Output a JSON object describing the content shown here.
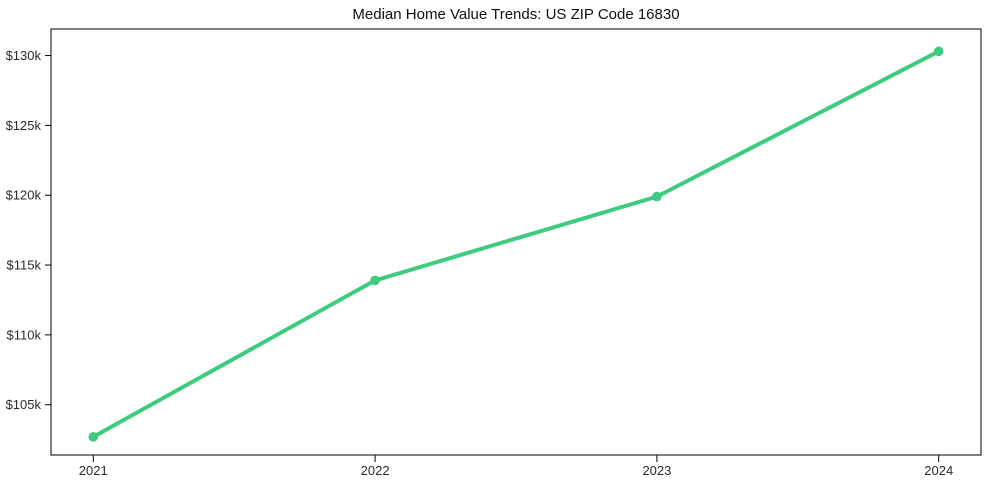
{
  "chart_data": {
    "type": "line",
    "title": "Median Home Value Trends: US ZIP Code 16830",
    "xlabel": "",
    "ylabel": "",
    "x": [
      2021,
      2022,
      2023,
      2024
    ],
    "x_tick_labels": [
      "2021",
      "2022",
      "2023",
      "2024"
    ],
    "series": [
      {
        "name": "Median home value",
        "values": [
          102700,
          113900,
          119900,
          130300
        ],
        "color": "#3dcc7e",
        "marker": "circle",
        "line_width": 4,
        "marker_radius": 4.8
      }
    ],
    "y_ticks": [
      {
        "value": 105000,
        "label": "$105k"
      },
      {
        "value": 110000,
        "label": "$110k"
      },
      {
        "value": 115000,
        "label": "$115k"
      },
      {
        "value": 120000,
        "label": "$120k"
      },
      {
        "value": 125000,
        "label": "$125k"
      },
      {
        "value": 130000,
        "label": "$130k"
      }
    ],
    "xlim": [
      2020.85,
      2024.15
    ],
    "ylim": [
      101400,
      131900
    ],
    "grid": false,
    "legend": "none",
    "background": "#ffffff",
    "spine_color": "#000000",
    "tick_color": "#000000",
    "tick_label_color": "#2b2b2b",
    "title_color": "#111111"
  }
}
